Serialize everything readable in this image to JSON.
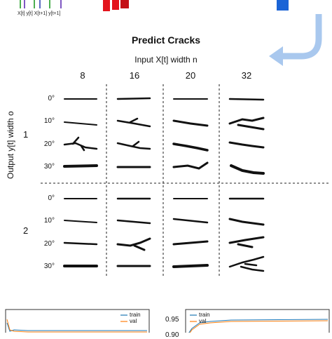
{
  "header_labels": {
    "seq": "X[t] y[t] X[t+1] y[t+1]"
  },
  "title": "Predict Cracks",
  "input_label": "Input X[t] width n",
  "output_label": "Output y[t] width o",
  "columns": [
    "8",
    "16",
    "20",
    "32"
  ],
  "row_groups": [
    "1",
    "2"
  ],
  "angles": [
    "0°",
    "10°",
    "20°",
    "30°"
  ],
  "bottom_chart_left": {
    "legend": [
      "train",
      "val"
    ]
  },
  "bottom_chart_right": {
    "legend": [
      "train",
      "val"
    ],
    "tick_095": "0.95",
    "tick_090": "0.90"
  },
  "colors": {
    "train": "#1f77b4",
    "val": "#ff7f0e",
    "block_red": "#e3141c",
    "block_blue": "#1b64d6",
    "arrow": "#a9c8ee"
  }
}
